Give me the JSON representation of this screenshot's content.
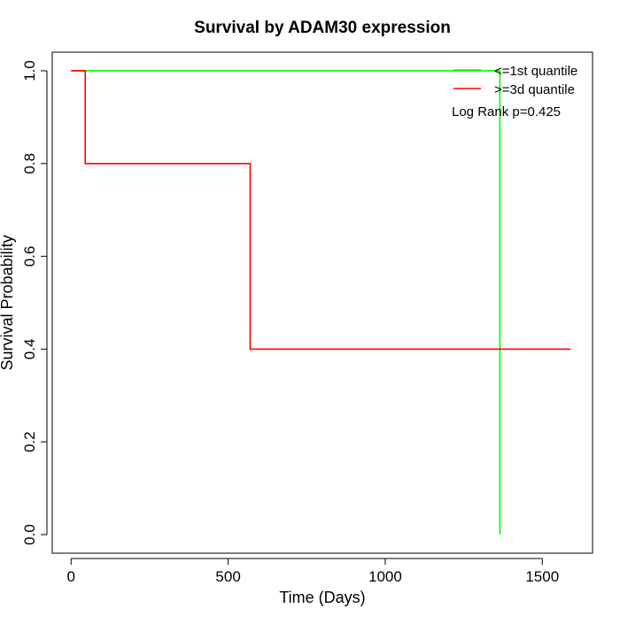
{
  "chart_data": {
    "type": "line",
    "title": "Survival by ADAM30 expression",
    "xlabel": "Time (Days)",
    "ylabel": "Survival Probability",
    "xlim": [
      -60,
      1660
    ],
    "ylim": [
      -0.04,
      1.04
    ],
    "x_ticks": [
      0,
      500,
      1000,
      1500
    ],
    "x_tick_labels": [
      "0",
      "500",
      "1000",
      "1500"
    ],
    "y_ticks": [
      0.0,
      0.2,
      0.4,
      0.6,
      0.8,
      1.0
    ],
    "y_tick_labels": [
      "0.0",
      "0.2",
      "0.4",
      "0.6",
      "0.8",
      "1.0"
    ],
    "grid": false,
    "legend_position": "top-right",
    "series": [
      {
        "name": "<=1st quantile",
        "color": "#00ff00",
        "step": true,
        "x": [
          0,
          1365,
          1365
        ],
        "y": [
          1.0,
          1.0,
          0.0
        ]
      },
      {
        "name": ">=3d quantile",
        "color": "#ff0000",
        "step": true,
        "x": [
          0,
          45,
          45,
          570,
          570,
          1590
        ],
        "y": [
          1.0,
          1.0,
          0.8,
          0.8,
          0.4,
          0.4
        ]
      }
    ],
    "annotation": "Log Rank p=0.425"
  }
}
